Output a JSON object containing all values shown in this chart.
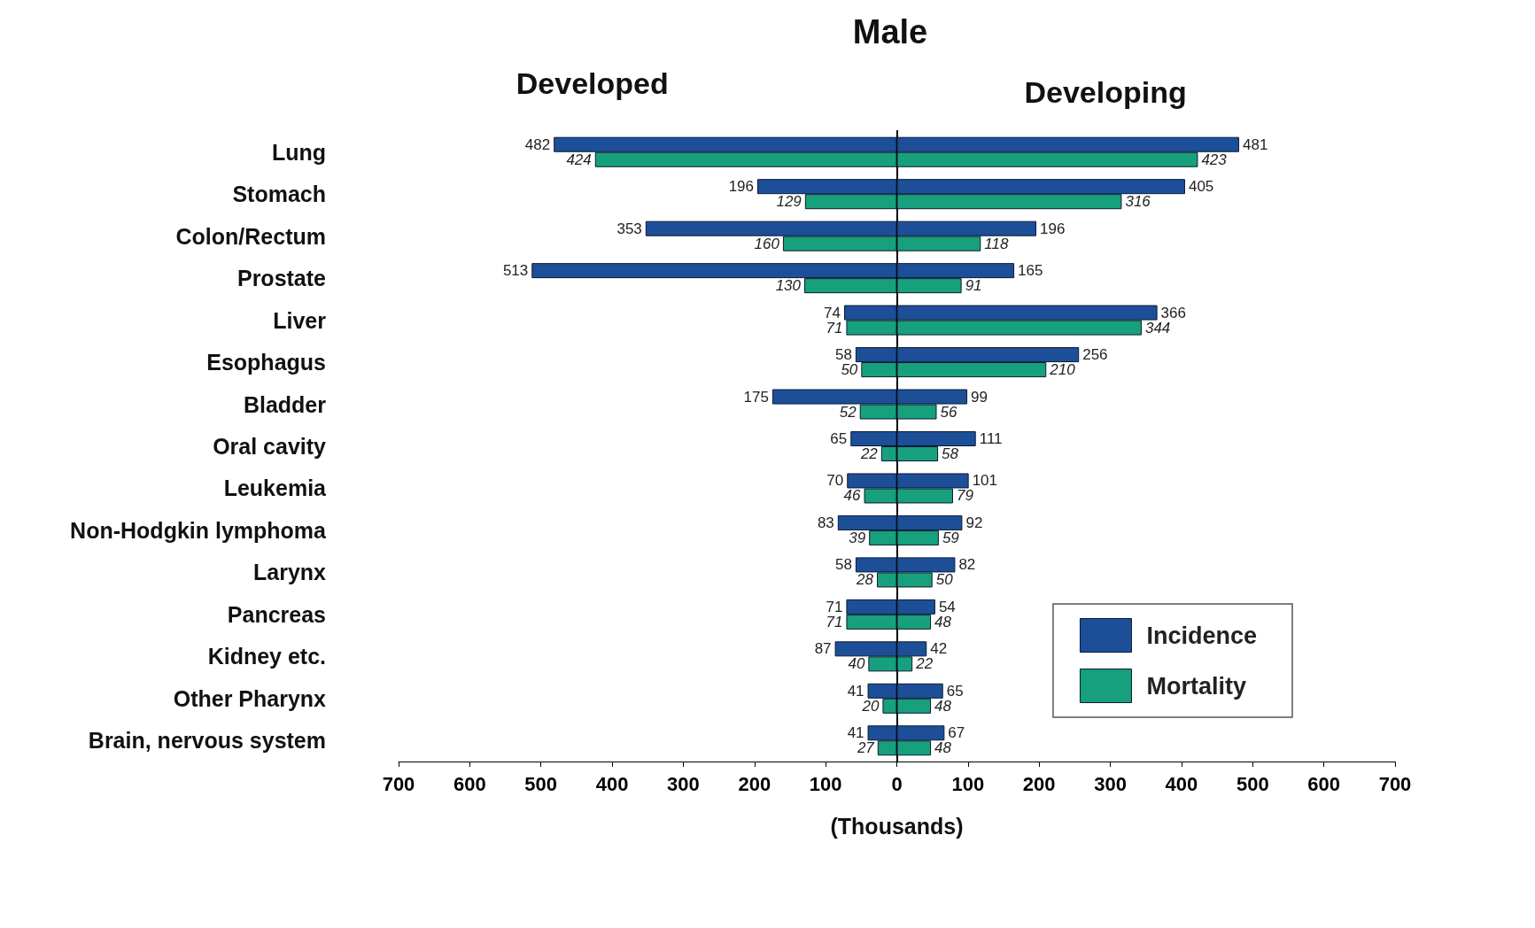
{
  "chart_data": [
    {
      "type": "bar",
      "orientation": "horizontal",
      "title": "Male",
      "subtitle": "Developed",
      "categories": [
        "Lung",
        "Stomach",
        "Colon/Rectum",
        "Prostate",
        "Liver",
        "Esophagus",
        "Bladder",
        "Oral cavity",
        "Leukemia",
        "Non-Hodgkin lymphoma",
        "Larynx",
        "Pancreas",
        "Kidney etc.",
        "Other Pharynx",
        "Brain, nervous system"
      ],
      "series": [
        {
          "color": "#1c4f98",
          "values": [
            482,
            196,
            353,
            513,
            74,
            58,
            175,
            65,
            70,
            83,
            58,
            71,
            87,
            41,
            41
          ]
        },
        {
          "color": "#17a07c",
          "values": [
            424,
            129,
            160,
            130,
            71,
            50,
            52,
            22,
            46,
            39,
            28,
            71,
            40,
            20,
            27
          ]
        }
      ],
      "data_labels": true,
      "xlim": [
        700,
        0
      ],
      "xticks": [
        700,
        600,
        500,
        400,
        300,
        200,
        100,
        {
          "value": 0,
          "label": null
        }
      ]
    },
    {
      "type": "bar",
      "orientation": "horizontal",
      "title": "Developing",
      "xlabel": "(Thousands)",
      "categories": [
        null,
        null,
        null,
        null,
        null,
        null,
        null,
        null,
        null,
        null,
        null,
        null,
        null,
        null,
        null
      ],
      "series": [
        {
          "name": "Incidence",
          "color": "#1c4f98",
          "values": [
            481,
            405,
            196,
            165,
            366,
            256,
            99,
            111,
            101,
            92,
            82,
            54,
            42,
            65,
            67
          ]
        },
        {
          "name": "Mortality",
          "color": "#17a07c",
          "values": [
            423,
            316,
            118,
            91,
            344,
            210,
            56,
            58,
            79,
            59,
            50,
            48,
            22,
            48,
            48
          ]
        }
      ],
      "data_labels": true,
      "xlim": [
        0,
        700
      ],
      "xticks": [
        0,
        100,
        200,
        300,
        400,
        500,
        600,
        700
      ],
      "legend": "bottom right"
    }
  ]
}
